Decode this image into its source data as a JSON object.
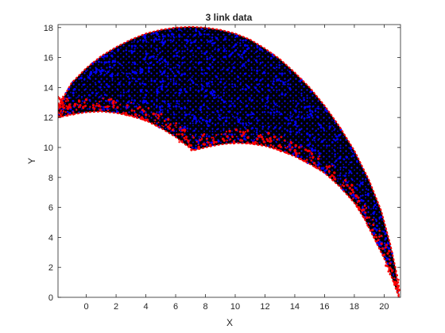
{
  "chart_data": {
    "type": "scatter",
    "title": "3 link data",
    "xlabel": "X",
    "ylabel": "Y",
    "xlim": [
      -1.9,
      21.1
    ],
    "ylim": [
      0,
      18.2
    ],
    "xticks": [
      0,
      2,
      4,
      6,
      8,
      10,
      12,
      14,
      16,
      18,
      20
    ],
    "yticks": [
      0,
      2,
      4,
      6,
      8,
      10,
      12,
      14,
      16,
      18
    ],
    "grid": false,
    "legend": false,
    "series": [
      {
        "color": "#000000"
      },
      {
        "color": "#0000ff"
      },
      {
        "color": "#ff0000"
      }
    ],
    "region": {
      "outer_boundary": [
        [
          -1.9,
          12.0
        ],
        [
          -1.9,
          12.5
        ],
        [
          -1.5,
          13.4
        ],
        [
          -1.0,
          14.3
        ],
        [
          0,
          15.3
        ],
        [
          1,
          16.1
        ],
        [
          2,
          16.7
        ],
        [
          3,
          17.2
        ],
        [
          4,
          17.6
        ],
        [
          5,
          17.85
        ],
        [
          6,
          18.0
        ],
        [
          7,
          18.05
        ],
        [
          8,
          18.0
        ],
        [
          9,
          17.85
        ],
        [
          10,
          17.6
        ],
        [
          11,
          17.2
        ],
        [
          12,
          16.6
        ],
        [
          13,
          15.9
        ],
        [
          14,
          15.0
        ],
        [
          15,
          14.0
        ],
        [
          16,
          12.8
        ],
        [
          17,
          11.4
        ],
        [
          18,
          9.8
        ],
        [
          19,
          7.8
        ],
        [
          19.8,
          5.8
        ],
        [
          20.4,
          3.6
        ],
        [
          20.8,
          1.8
        ],
        [
          21.0,
          0.0
        ]
      ],
      "inner_boundary": [
        [
          21.0,
          0.0
        ],
        [
          20.7,
          0.8
        ],
        [
          20.2,
          2.2
        ],
        [
          19.5,
          3.6
        ],
        [
          18.7,
          5.2
        ],
        [
          18,
          6.3
        ],
        [
          17,
          7.4
        ],
        [
          16,
          8.3
        ],
        [
          15,
          8.9
        ],
        [
          14,
          9.4
        ],
        [
          13,
          9.8
        ],
        [
          12,
          10.1
        ],
        [
          11,
          10.25
        ],
        [
          10,
          10.3
        ],
        [
          9,
          10.2
        ],
        [
          8,
          10.0
        ],
        [
          7.2,
          9.8
        ],
        [
          6.5,
          10.3
        ],
        [
          6,
          10.7
        ],
        [
          5,
          11.3
        ],
        [
          4,
          11.8
        ],
        [
          3,
          12.1
        ],
        [
          2,
          12.3
        ],
        [
          1,
          12.4
        ],
        [
          0,
          12.35
        ],
        [
          -1,
          12.2
        ],
        [
          -1.9,
          12.0
        ]
      ]
    }
  }
}
